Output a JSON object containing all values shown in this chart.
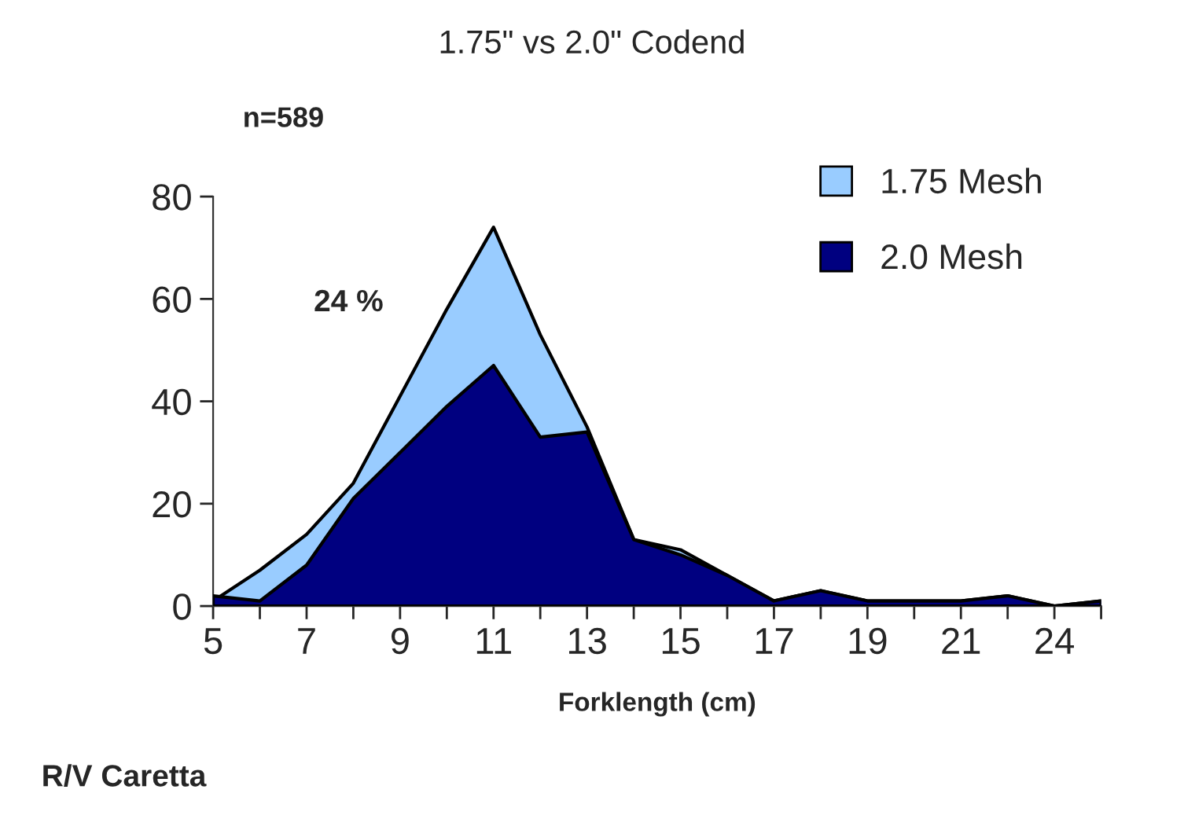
{
  "chart_data": {
    "type": "area",
    "title": "1.75\" vs 2.0\" Codend",
    "xlabel": "Forklength (cm)",
    "categories": [
      "5",
      null,
      "7",
      null,
      "9",
      null,
      "11",
      null,
      "13",
      null,
      "15",
      null,
      "17",
      null,
      "19",
      null,
      "21",
      null,
      "24",
      null
    ],
    "series": [
      {
        "name": "1.75 Mesh",
        "color": "#99ccff",
        "values": [
          1,
          7,
          14,
          24,
          41,
          58,
          74,
          53,
          35,
          13,
          11,
          6,
          1,
          3,
          1,
          1,
          1,
          2,
          0,
          1
        ]
      },
      {
        "name": "2.0 Mesh",
        "color": "#000080",
        "values": [
          2,
          1,
          8,
          21,
          30,
          39,
          47,
          33,
          34,
          13,
          10,
          6,
          1,
          3,
          1,
          1,
          1,
          2,
          0,
          1
        ]
      }
    ],
    "ylim": [
      0,
      80
    ],
    "yticks": [
      0,
      20,
      40,
      60,
      80
    ],
    "grid": false,
    "legend": "top right",
    "annotations": [
      "n=589",
      "24 %",
      "R/V Caretta"
    ]
  }
}
